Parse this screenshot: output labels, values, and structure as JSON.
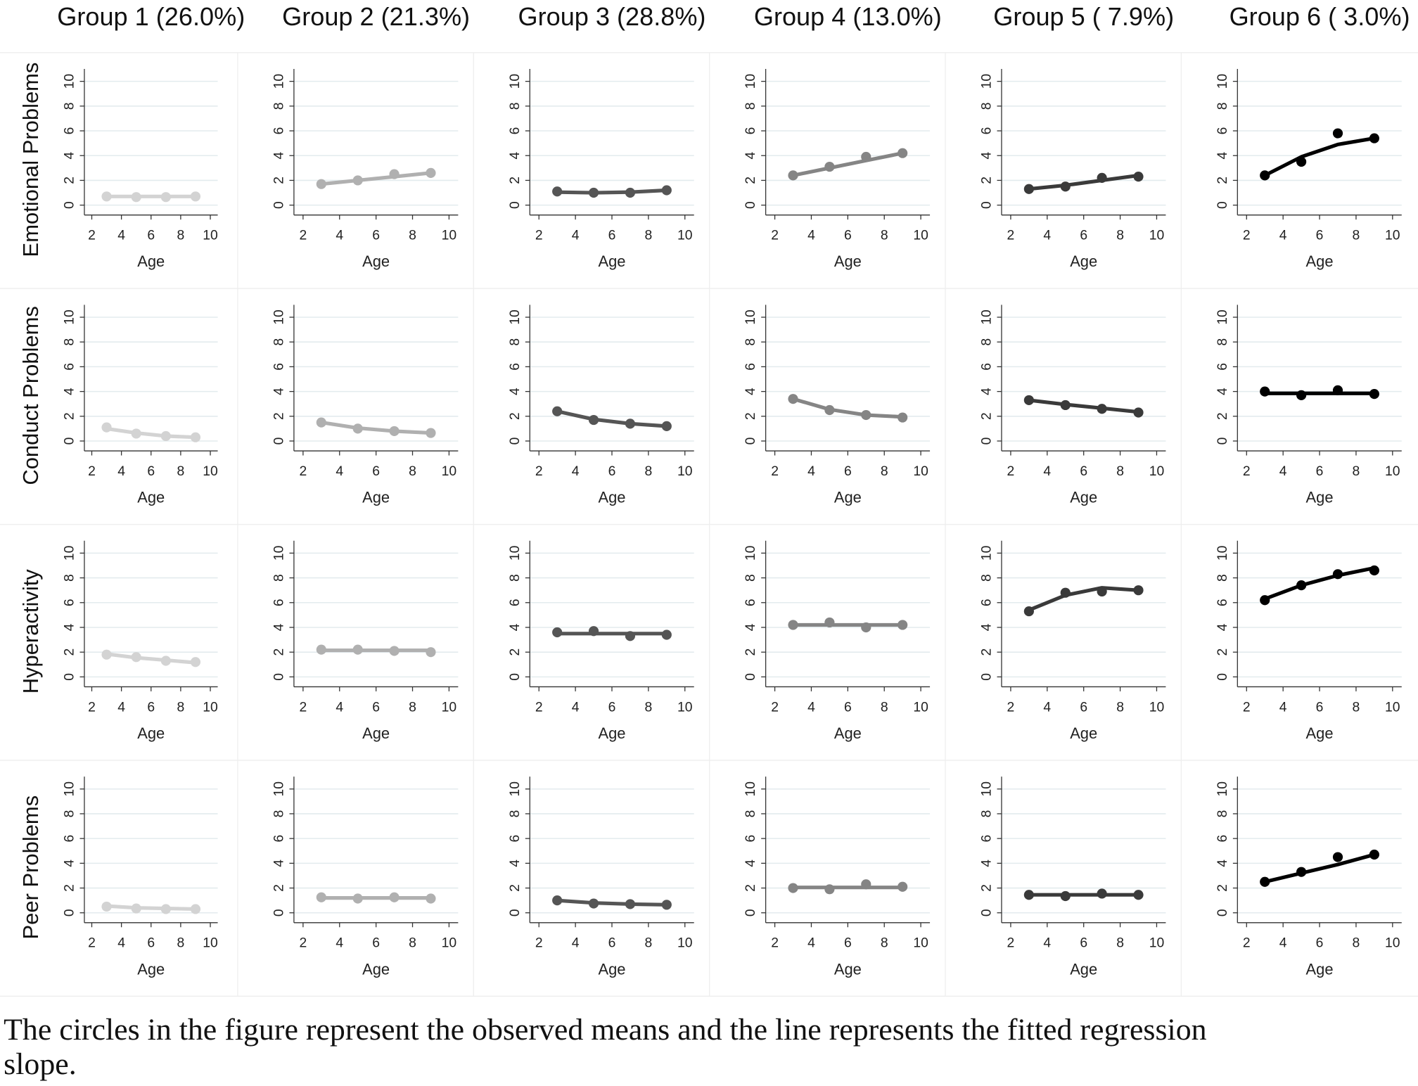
{
  "column_titles": [
    "Group 1 (26.0%)",
    "Group 2 (21.3%)",
    "Group 3 (28.8%)",
    "Group 4 (13.0%)",
    "Group 5 ( 7.9%)",
    "Group 6 ( 3.0%)"
  ],
  "row_titles": [
    "Emotional Problems",
    "Conduct Problems",
    "Hyperactivity",
    "Peer Problems"
  ],
  "caption": [
    "The circles in the figure represent the observed means and the line represents the fitted regression",
    "slope."
  ],
  "chart_data": [
    {
      "type": "line",
      "xlabel": "Age",
      "x": [
        3,
        5,
        7,
        9
      ],
      "xlim": [
        1.5,
        10.5
      ],
      "xticks": [
        2,
        4,
        6,
        8,
        10
      ],
      "ylim": [
        -0.8,
        11
      ],
      "yticks": [
        0,
        2,
        4,
        6,
        8,
        10
      ],
      "grid": true,
      "series": [
        {
          "style": "markers",
          "color": "#d3d3d3",
          "values": [
            0.7,
            0.65,
            0.65,
            0.7
          ]
        },
        {
          "style": "line",
          "color": "#d3d3d3",
          "values": [
            0.7,
            0.7,
            0.7,
            0.7
          ]
        }
      ]
    },
    {
      "type": "line",
      "xlabel": "Age",
      "x": [
        3,
        5,
        7,
        9
      ],
      "xlim": [
        1.5,
        10.5
      ],
      "xticks": [
        2,
        4,
        6,
        8,
        10
      ],
      "ylim": [
        -0.8,
        11
      ],
      "yticks": [
        0,
        2,
        4,
        6,
        8,
        10
      ],
      "grid": true,
      "series": [
        {
          "style": "markers",
          "color": "#b0b0b0",
          "values": [
            1.7,
            2.0,
            2.5,
            2.6
          ]
        },
        {
          "style": "line",
          "color": "#b0b0b0",
          "values": [
            1.7,
            2.0,
            2.3,
            2.6
          ]
        }
      ]
    },
    {
      "type": "line",
      "xlabel": "Age",
      "x": [
        3,
        5,
        7,
        9
      ],
      "xlim": [
        1.5,
        10.5
      ],
      "xticks": [
        2,
        4,
        6,
        8,
        10
      ],
      "ylim": [
        -0.8,
        11
      ],
      "yticks": [
        0,
        2,
        4,
        6,
        8,
        10
      ],
      "grid": true,
      "series": [
        {
          "style": "markers",
          "color": "#555555",
          "values": [
            1.1,
            1.0,
            1.0,
            1.2
          ]
        },
        {
          "style": "line",
          "color": "#555555",
          "values": [
            1.05,
            1.0,
            1.05,
            1.2
          ]
        }
      ]
    },
    {
      "type": "line",
      "xlabel": "Age",
      "x": [
        3,
        5,
        7,
        9
      ],
      "xlim": [
        1.5,
        10.5
      ],
      "xticks": [
        2,
        4,
        6,
        8,
        10
      ],
      "ylim": [
        -0.8,
        11
      ],
      "yticks": [
        0,
        2,
        4,
        6,
        8,
        10
      ],
      "grid": true,
      "series": [
        {
          "style": "markers",
          "color": "#858585",
          "values": [
            2.4,
            3.1,
            3.9,
            4.2
          ]
        },
        {
          "style": "line",
          "color": "#858585",
          "values": [
            2.4,
            3.0,
            3.6,
            4.2
          ]
        }
      ]
    },
    {
      "type": "line",
      "xlabel": "Age",
      "x": [
        3,
        5,
        7,
        9
      ],
      "xlim": [
        1.5,
        10.5
      ],
      "xticks": [
        2,
        4,
        6,
        8,
        10
      ],
      "ylim": [
        -0.8,
        11
      ],
      "yticks": [
        0,
        2,
        4,
        6,
        8,
        10
      ],
      "grid": true,
      "series": [
        {
          "style": "markers",
          "color": "#3a3a3a",
          "values": [
            1.3,
            1.5,
            2.2,
            2.3
          ]
        },
        {
          "style": "line",
          "color": "#3a3a3a",
          "values": [
            1.3,
            1.6,
            2.0,
            2.4
          ]
        }
      ]
    },
    {
      "type": "line",
      "xlabel": "Age",
      "x": [
        3,
        5,
        7,
        9
      ],
      "xlim": [
        1.5,
        10.5
      ],
      "xticks": [
        2,
        4,
        6,
        8,
        10
      ],
      "ylim": [
        -0.8,
        11
      ],
      "yticks": [
        0,
        2,
        4,
        6,
        8,
        10
      ],
      "grid": true,
      "series": [
        {
          "style": "markers",
          "color": "#000000",
          "values": [
            2.4,
            3.5,
            5.8,
            5.4
          ]
        },
        {
          "style": "line",
          "color": "#000000",
          "values": [
            2.4,
            3.9,
            4.9,
            5.4
          ]
        }
      ]
    },
    {
      "type": "line",
      "xlabel": "Age",
      "x": [
        3,
        5,
        7,
        9
      ],
      "xlim": [
        1.5,
        10.5
      ],
      "xticks": [
        2,
        4,
        6,
        8,
        10
      ],
      "ylim": [
        -0.8,
        11
      ],
      "yticks": [
        0,
        2,
        4,
        6,
        8,
        10
      ],
      "grid": true,
      "series": [
        {
          "style": "markers",
          "color": "#d3d3d3",
          "values": [
            1.1,
            0.6,
            0.4,
            0.3
          ]
        },
        {
          "style": "line",
          "color": "#d3d3d3",
          "values": [
            1.0,
            0.65,
            0.4,
            0.3
          ]
        }
      ]
    },
    {
      "type": "line",
      "xlabel": "Age",
      "x": [
        3,
        5,
        7,
        9
      ],
      "xlim": [
        1.5,
        10.5
      ],
      "xticks": [
        2,
        4,
        6,
        8,
        10
      ],
      "ylim": [
        -0.8,
        11
      ],
      "yticks": [
        0,
        2,
        4,
        6,
        8,
        10
      ],
      "grid": true,
      "series": [
        {
          "style": "markers",
          "color": "#b0b0b0",
          "values": [
            1.5,
            1.0,
            0.8,
            0.65
          ]
        },
        {
          "style": "line",
          "color": "#b0b0b0",
          "values": [
            1.5,
            1.05,
            0.8,
            0.65
          ]
        }
      ]
    },
    {
      "type": "line",
      "xlabel": "Age",
      "x": [
        3,
        5,
        7,
        9
      ],
      "xlim": [
        1.5,
        10.5
      ],
      "xticks": [
        2,
        4,
        6,
        8,
        10
      ],
      "ylim": [
        -0.8,
        11
      ],
      "yticks": [
        0,
        2,
        4,
        6,
        8,
        10
      ],
      "grid": true,
      "series": [
        {
          "style": "markers",
          "color": "#555555",
          "values": [
            2.4,
            1.7,
            1.4,
            1.2
          ]
        },
        {
          "style": "line",
          "color": "#555555",
          "values": [
            2.4,
            1.75,
            1.4,
            1.2
          ]
        }
      ]
    },
    {
      "type": "line",
      "xlabel": "Age",
      "x": [
        3,
        5,
        7,
        9
      ],
      "xlim": [
        1.5,
        10.5
      ],
      "xticks": [
        2,
        4,
        6,
        8,
        10
      ],
      "ylim": [
        -0.8,
        11
      ],
      "yticks": [
        0,
        2,
        4,
        6,
        8,
        10
      ],
      "grid": true,
      "series": [
        {
          "style": "markers",
          "color": "#858585",
          "values": [
            3.4,
            2.5,
            2.1,
            1.9
          ]
        },
        {
          "style": "line",
          "color": "#858585",
          "values": [
            3.4,
            2.55,
            2.1,
            1.95
          ]
        }
      ]
    },
    {
      "type": "line",
      "xlabel": "Age",
      "x": [
        3,
        5,
        7,
        9
      ],
      "xlim": [
        1.5,
        10.5
      ],
      "xticks": [
        2,
        4,
        6,
        8,
        10
      ],
      "ylim": [
        -0.8,
        11
      ],
      "yticks": [
        0,
        2,
        4,
        6,
        8,
        10
      ],
      "grid": true,
      "series": [
        {
          "style": "markers",
          "color": "#3a3a3a",
          "values": [
            3.3,
            2.9,
            2.6,
            2.3
          ]
        },
        {
          "style": "line",
          "color": "#3a3a3a",
          "values": [
            3.3,
            2.95,
            2.65,
            2.35
          ]
        }
      ]
    },
    {
      "type": "line",
      "xlabel": "Age",
      "x": [
        3,
        5,
        7,
        9
      ],
      "xlim": [
        1.5,
        10.5
      ],
      "xticks": [
        2,
        4,
        6,
        8,
        10
      ],
      "ylim": [
        -0.8,
        11
      ],
      "yticks": [
        0,
        2,
        4,
        6,
        8,
        10
      ],
      "grid": true,
      "series": [
        {
          "style": "markers",
          "color": "#000000",
          "values": [
            4.0,
            3.7,
            4.1,
            3.8
          ]
        },
        {
          "style": "line",
          "color": "#000000",
          "values": [
            3.85,
            3.85,
            3.85,
            3.85
          ]
        }
      ]
    },
    {
      "type": "line",
      "xlabel": "Age",
      "x": [
        3,
        5,
        7,
        9
      ],
      "xlim": [
        1.5,
        10.5
      ],
      "xticks": [
        2,
        4,
        6,
        8,
        10
      ],
      "ylim": [
        -0.8,
        11
      ],
      "yticks": [
        0,
        2,
        4,
        6,
        8,
        10
      ],
      "grid": true,
      "series": [
        {
          "style": "markers",
          "color": "#d3d3d3",
          "values": [
            1.8,
            1.6,
            1.3,
            1.2
          ]
        },
        {
          "style": "line",
          "color": "#d3d3d3",
          "values": [
            1.85,
            1.55,
            1.35,
            1.15
          ]
        }
      ]
    },
    {
      "type": "line",
      "xlabel": "Age",
      "x": [
        3,
        5,
        7,
        9
      ],
      "xlim": [
        1.5,
        10.5
      ],
      "xticks": [
        2,
        4,
        6,
        8,
        10
      ],
      "ylim": [
        -0.8,
        11
      ],
      "yticks": [
        0,
        2,
        4,
        6,
        8,
        10
      ],
      "grid": true,
      "series": [
        {
          "style": "markers",
          "color": "#b0b0b0",
          "values": [
            2.2,
            2.2,
            2.1,
            2.0
          ]
        },
        {
          "style": "line",
          "color": "#b0b0b0",
          "values": [
            2.15,
            2.15,
            2.15,
            2.15
          ]
        }
      ]
    },
    {
      "type": "line",
      "xlabel": "Age",
      "x": [
        3,
        5,
        7,
        9
      ],
      "xlim": [
        1.5,
        10.5
      ],
      "xticks": [
        2,
        4,
        6,
        8,
        10
      ],
      "ylim": [
        -0.8,
        11
      ],
      "yticks": [
        0,
        2,
        4,
        6,
        8,
        10
      ],
      "grid": true,
      "series": [
        {
          "style": "markers",
          "color": "#555555",
          "values": [
            3.6,
            3.7,
            3.3,
            3.4
          ]
        },
        {
          "style": "line",
          "color": "#555555",
          "values": [
            3.5,
            3.5,
            3.5,
            3.5
          ]
        }
      ]
    },
    {
      "type": "line",
      "xlabel": "Age",
      "x": [
        3,
        5,
        7,
        9
      ],
      "xlim": [
        1.5,
        10.5
      ],
      "xticks": [
        2,
        4,
        6,
        8,
        10
      ],
      "ylim": [
        -0.8,
        11
      ],
      "yticks": [
        0,
        2,
        4,
        6,
        8,
        10
      ],
      "grid": true,
      "series": [
        {
          "style": "markers",
          "color": "#858585",
          "values": [
            4.2,
            4.4,
            4.0,
            4.2
          ]
        },
        {
          "style": "line",
          "color": "#858585",
          "values": [
            4.2,
            4.2,
            4.2,
            4.2
          ]
        }
      ]
    },
    {
      "type": "line",
      "xlabel": "Age",
      "x": [
        3,
        5,
        7,
        9
      ],
      "xlim": [
        1.5,
        10.5
      ],
      "xticks": [
        2,
        4,
        6,
        8,
        10
      ],
      "ylim": [
        -0.8,
        11
      ],
      "yticks": [
        0,
        2,
        4,
        6,
        8,
        10
      ],
      "grid": true,
      "series": [
        {
          "style": "markers",
          "color": "#3a3a3a",
          "values": [
            5.3,
            6.8,
            6.9,
            7.0
          ]
        },
        {
          "style": "line",
          "color": "#3a3a3a",
          "values": [
            5.4,
            6.6,
            7.2,
            7.0
          ]
        }
      ]
    },
    {
      "type": "line",
      "xlabel": "Age",
      "x": [
        3,
        5,
        7,
        9
      ],
      "xlim": [
        1.5,
        10.5
      ],
      "xticks": [
        2,
        4,
        6,
        8,
        10
      ],
      "ylim": [
        -0.8,
        11
      ],
      "yticks": [
        0,
        2,
        4,
        6,
        8,
        10
      ],
      "grid": true,
      "series": [
        {
          "style": "markers",
          "color": "#000000",
          "values": [
            6.2,
            7.4,
            8.3,
            8.6
          ]
        },
        {
          "style": "line",
          "color": "#000000",
          "values": [
            6.3,
            7.4,
            8.2,
            8.8
          ]
        }
      ]
    },
    {
      "type": "line",
      "xlabel": "Age",
      "x": [
        3,
        5,
        7,
        9
      ],
      "xlim": [
        1.5,
        10.5
      ],
      "xticks": [
        2,
        4,
        6,
        8,
        10
      ],
      "ylim": [
        -0.8,
        11
      ],
      "yticks": [
        0,
        2,
        4,
        6,
        8,
        10
      ],
      "grid": true,
      "series": [
        {
          "style": "markers",
          "color": "#d3d3d3",
          "values": [
            0.5,
            0.35,
            0.3,
            0.3
          ]
        },
        {
          "style": "line",
          "color": "#d3d3d3",
          "values": [
            0.55,
            0.4,
            0.35,
            0.3
          ]
        }
      ]
    },
    {
      "type": "line",
      "xlabel": "Age",
      "x": [
        3,
        5,
        7,
        9
      ],
      "xlim": [
        1.5,
        10.5
      ],
      "xticks": [
        2,
        4,
        6,
        8,
        10
      ],
      "ylim": [
        -0.8,
        11
      ],
      "yticks": [
        0,
        2,
        4,
        6,
        8,
        10
      ],
      "grid": true,
      "series": [
        {
          "style": "markers",
          "color": "#b0b0b0",
          "values": [
            1.25,
            1.15,
            1.25,
            1.15
          ]
        },
        {
          "style": "line",
          "color": "#b0b0b0",
          "values": [
            1.2,
            1.2,
            1.2,
            1.2
          ]
        }
      ]
    },
    {
      "type": "line",
      "xlabel": "Age",
      "x": [
        3,
        5,
        7,
        9
      ],
      "xlim": [
        1.5,
        10.5
      ],
      "xticks": [
        2,
        4,
        6,
        8,
        10
      ],
      "ylim": [
        -0.8,
        11
      ],
      "yticks": [
        0,
        2,
        4,
        6,
        8,
        10
      ],
      "grid": true,
      "series": [
        {
          "style": "markers",
          "color": "#555555",
          "values": [
            1.0,
            0.75,
            0.7,
            0.65
          ]
        },
        {
          "style": "line",
          "color": "#555555",
          "values": [
            1.0,
            0.8,
            0.7,
            0.65
          ]
        }
      ]
    },
    {
      "type": "line",
      "xlabel": "Age",
      "x": [
        3,
        5,
        7,
        9
      ],
      "xlim": [
        1.5,
        10.5
      ],
      "xticks": [
        2,
        4,
        6,
        8,
        10
      ],
      "ylim": [
        -0.8,
        11
      ],
      "yticks": [
        0,
        2,
        4,
        6,
        8,
        10
      ],
      "grid": true,
      "series": [
        {
          "style": "markers",
          "color": "#858585",
          "values": [
            2.0,
            1.9,
            2.3,
            2.1
          ]
        },
        {
          "style": "line",
          "color": "#858585",
          "values": [
            2.05,
            2.05,
            2.05,
            2.05
          ]
        }
      ]
    },
    {
      "type": "line",
      "xlabel": "Age",
      "x": [
        3,
        5,
        7,
        9
      ],
      "xlim": [
        1.5,
        10.5
      ],
      "xticks": [
        2,
        4,
        6,
        8,
        10
      ],
      "ylim": [
        -0.8,
        11
      ],
      "yticks": [
        0,
        2,
        4,
        6,
        8,
        10
      ],
      "grid": true,
      "series": [
        {
          "style": "markers",
          "color": "#3a3a3a",
          "values": [
            1.45,
            1.35,
            1.55,
            1.45
          ]
        },
        {
          "style": "line",
          "color": "#3a3a3a",
          "values": [
            1.45,
            1.45,
            1.45,
            1.45
          ]
        }
      ]
    },
    {
      "type": "line",
      "xlabel": "Age",
      "x": [
        3,
        5,
        7,
        9
      ],
      "xlim": [
        1.5,
        10.5
      ],
      "xticks": [
        2,
        4,
        6,
        8,
        10
      ],
      "ylim": [
        -0.8,
        11
      ],
      "yticks": [
        0,
        2,
        4,
        6,
        8,
        10
      ],
      "grid": true,
      "series": [
        {
          "style": "markers",
          "color": "#000000",
          "values": [
            2.5,
            3.3,
            4.5,
            4.7
          ]
        },
        {
          "style": "line",
          "color": "#000000",
          "values": [
            2.5,
            3.2,
            3.9,
            4.7
          ]
        }
      ]
    }
  ]
}
